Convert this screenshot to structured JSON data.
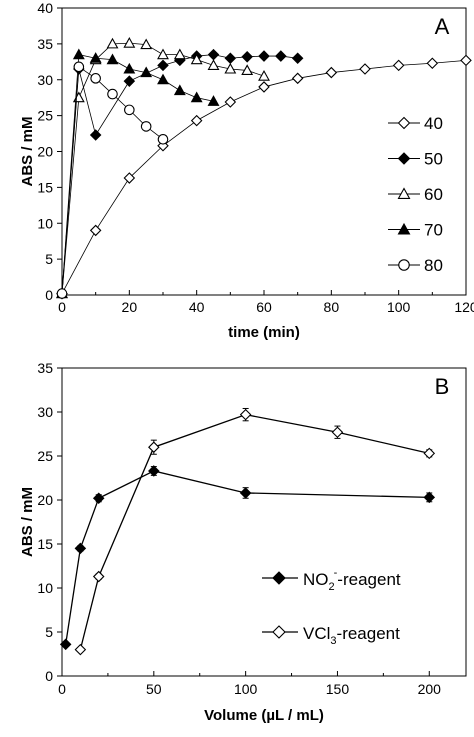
{
  "chart_data": [
    {
      "type": "scatter",
      "panel_label": "A",
      "xlabel": "time (min)",
      "ylabel": "ABS / mM",
      "xlim": [
        0,
        120
      ],
      "ylim": [
        0,
        40
      ],
      "xticks": [
        "0",
        "20",
        "40",
        "60",
        "80",
        "100",
        "120"
      ],
      "yticks": [
        "0",
        "5",
        "10",
        "15",
        "20",
        "25",
        "30",
        "35",
        "40"
      ],
      "grid": false,
      "legend_position": "right",
      "series": [
        {
          "name": "40",
          "marker": "diamond-open",
          "x": [
            0,
            10,
            20,
            30,
            40,
            50,
            60,
            70,
            80,
            90,
            100,
            110,
            120
          ],
          "y": [
            0.2,
            9.0,
            16.3,
            20.8,
            24.3,
            26.9,
            29.0,
            30.2,
            31.0,
            31.5,
            32.0,
            32.3,
            32.7
          ]
        },
        {
          "name": "50",
          "marker": "diamond-filled",
          "x": [
            0,
            5,
            10,
            20,
            30,
            35,
            40,
            45,
            50,
            55,
            60,
            65,
            70
          ],
          "y": [
            0.2,
            31.5,
            22.3,
            29.8,
            32.0,
            32.7,
            33.3,
            33.5,
            33.0,
            33.2,
            33.3,
            33.3,
            33.0
          ]
        },
        {
          "name": "60",
          "marker": "triangle-open",
          "x": [
            0,
            5,
            10,
            15,
            20,
            25,
            30,
            35,
            40,
            45,
            50,
            55,
            60
          ],
          "y": [
            0.2,
            27.5,
            32.8,
            35.0,
            35.1,
            34.9,
            33.5,
            33.5,
            32.8,
            32.0,
            31.5,
            31.3,
            30.5
          ]
        },
        {
          "name": "70",
          "marker": "triangle-filled",
          "x": [
            0,
            5,
            10,
            15,
            20,
            25,
            30,
            35,
            40,
            45
          ],
          "y": [
            0.2,
            33.5,
            33.0,
            32.8,
            31.5,
            31.0,
            30.0,
            28.5,
            27.5,
            27.0
          ]
        },
        {
          "name": "80",
          "marker": "circle-open",
          "x": [
            0,
            5,
            10,
            15,
            20,
            25,
            30
          ],
          "y": [
            0.2,
            31.8,
            30.2,
            28.0,
            25.8,
            23.5,
            21.7
          ]
        }
      ]
    },
    {
      "type": "line",
      "panel_label": "B",
      "xlabel": "Volume (µL / mL)",
      "ylabel": "ABS / mM",
      "xlim": [
        0,
        220
      ],
      "ylim": [
        0,
        35
      ],
      "xticks": [
        "0",
        "50",
        "100",
        "150",
        "200"
      ],
      "yticks": [
        "0",
        "5",
        "10",
        "15",
        "20",
        "25",
        "30",
        "35"
      ],
      "grid": false,
      "legend_position": "bottom-right",
      "series": [
        {
          "name": "NO2- -reagent",
          "legend_parts": [
            "NO",
            "2",
            "-",
            "-reagent"
          ],
          "marker": "diamond-filled",
          "x": [
            2,
            10,
            20,
            50,
            100,
            200
          ],
          "y": [
            3.6,
            14.5,
            20.2,
            23.3,
            20.8,
            20.3
          ],
          "err": [
            0.2,
            0.3,
            0.4,
            0.5,
            0.6,
            0.5
          ]
        },
        {
          "name": "VCl3-reagent",
          "legend_parts": [
            "VCl",
            "3",
            "",
            "-reagent"
          ],
          "marker": "diamond-open",
          "x": [
            10,
            20,
            50,
            100,
            150,
            200
          ],
          "y": [
            3.0,
            11.3,
            26.0,
            29.7,
            27.7,
            25.3
          ],
          "err": [
            0.2,
            0.3,
            0.8,
            0.7,
            0.7,
            0.4
          ]
        }
      ]
    }
  ]
}
